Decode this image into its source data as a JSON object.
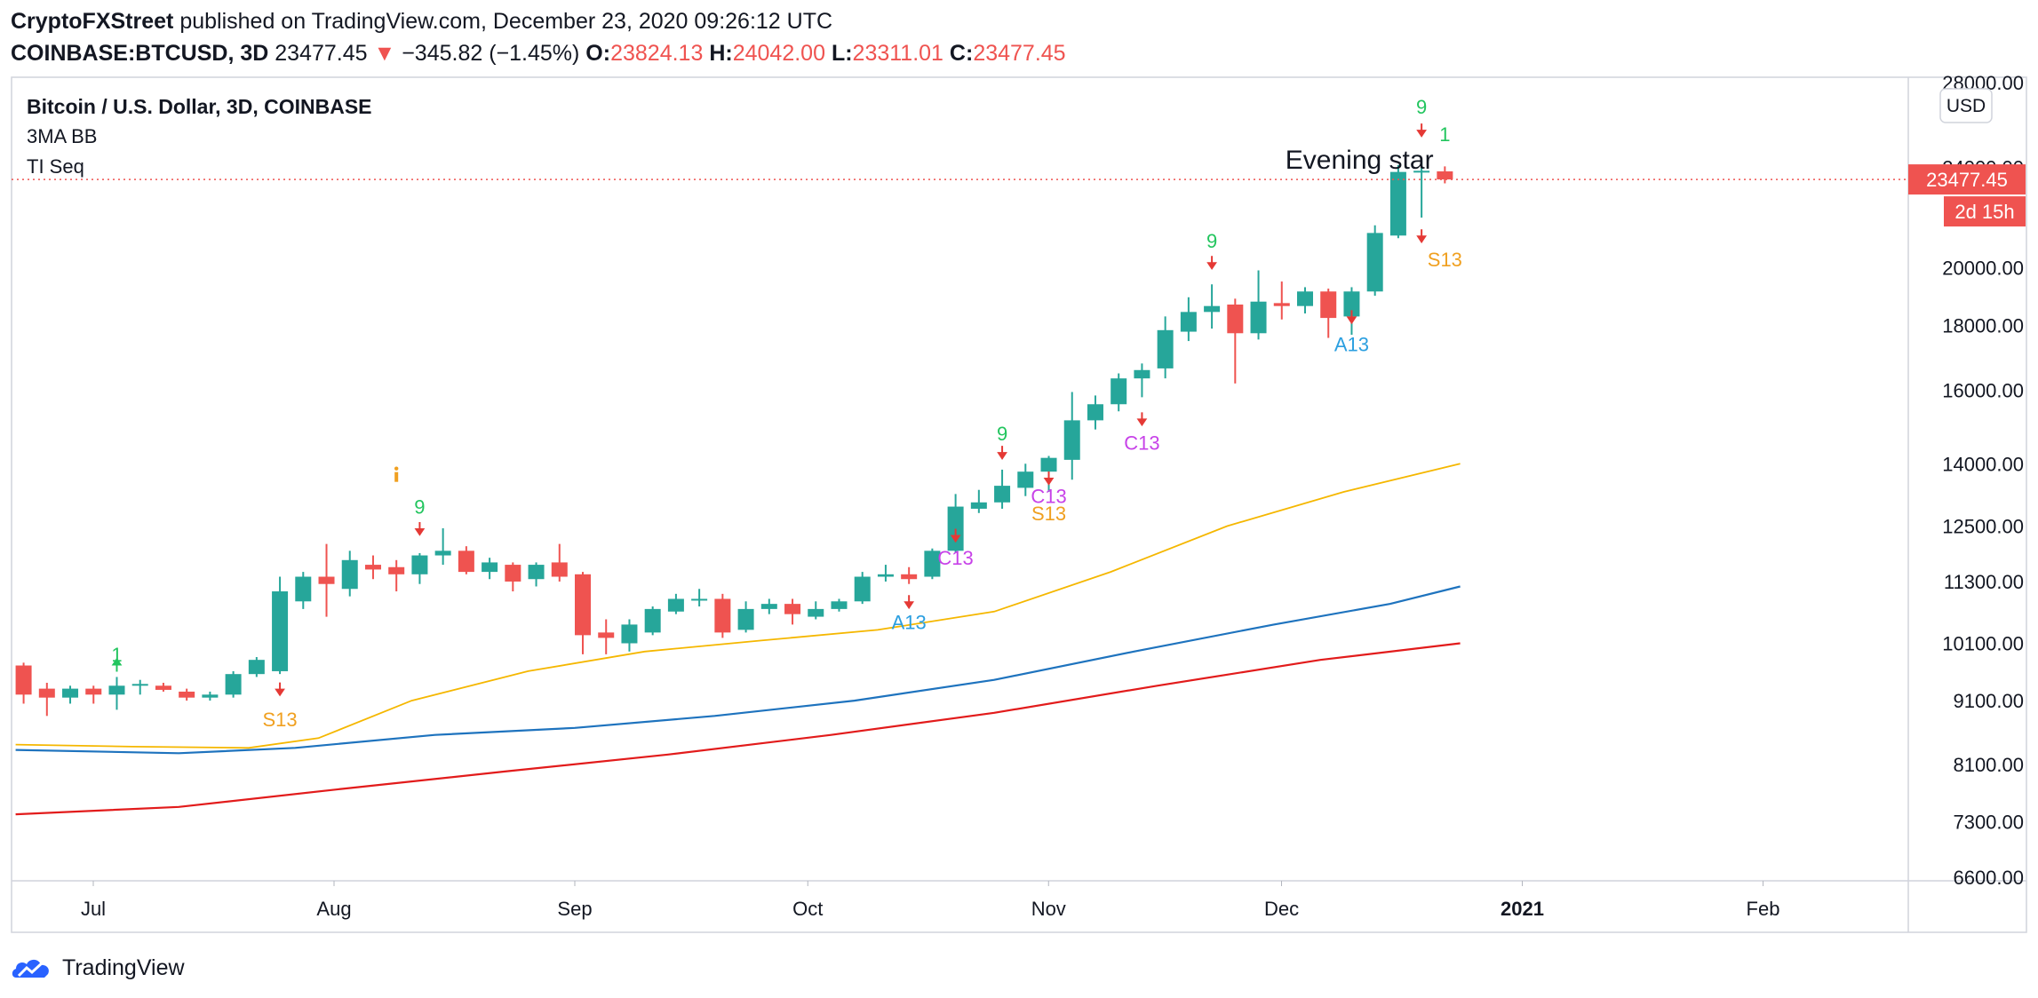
{
  "header": {
    "author": "CryptoFXStreet",
    "published_text": "published on TradingView.com, December 23, 2020 09:26:12 UTC",
    "symbol": "COINBASE:BTCUSD, 3D",
    "last_price": "23477.45",
    "change_arrow": "▼",
    "change": "−345.82 (−1.45%)",
    "o_label": "O:",
    "o_value": "23824.13",
    "h_label": "H:",
    "h_value": "24042.00",
    "l_label": "L:",
    "l_value": "23311.01",
    "c_label": "C:",
    "c_value": "23477.45"
  },
  "legend": {
    "title": "Bitcoin / U.S. Dollar, 3D, COINBASE",
    "indicator1": "3MA BB",
    "indicator2": "TI Seq"
  },
  "axis": {
    "currency_badge": "USD",
    "price_badge": "23477.45",
    "countdown_badge": "2d 15h"
  },
  "footer": {
    "brand": "TradingView"
  },
  "colors": {
    "up": "#26a69a",
    "down": "#ef5350",
    "ma_yellow": "#f5b700",
    "ma_blue": "#1e73be",
    "ma_red": "#e21b1b",
    "seq_green": "#22c55e",
    "seq_orange": "#f0a020",
    "seq_purple": "#c742e8",
    "seq_blue": "#2b9fe0",
    "seq_arrow_red": "#e53935"
  },
  "chart_data": {
    "type": "candlestick",
    "scale": "log",
    "ylim": [
      6600,
      28000
    ],
    "y_ticks": [
      "6600.00",
      "7300.00",
      "8100.00",
      "9100.00",
      "10100.00",
      "11300.00",
      "12500.00",
      "14000.00",
      "16000.00",
      "18000.00",
      "20000.00",
      "24000.00",
      "28000.00"
    ],
    "x_ticks": [
      {
        "label": "Jul",
        "date": "2020-07-01"
      },
      {
        "label": "Aug",
        "date": "2020-08-01"
      },
      {
        "label": "Sep",
        "date": "2020-09-01"
      },
      {
        "label": "Oct",
        "date": "2020-10-01"
      },
      {
        "label": "Nov",
        "date": "2020-11-01"
      },
      {
        "label": "Dec",
        "date": "2020-12-01"
      },
      {
        "label": "2021",
        "date": "2021-01-01"
      },
      {
        "label": "Feb",
        "date": "2021-02-01"
      }
    ],
    "candles": [
      {
        "d": "2020-06-21",
        "o": 9700,
        "h": 9750,
        "l": 9050,
        "c": 9200
      },
      {
        "d": "2020-06-24",
        "o": 9300,
        "h": 9400,
        "l": 8850,
        "c": 9150
      },
      {
        "d": "2020-06-27",
        "o": 9150,
        "h": 9350,
        "l": 9050,
        "c": 9300
      },
      {
        "d": "2020-06-30",
        "o": 9300,
        "h": 9350,
        "l": 9050,
        "c": 9200
      },
      {
        "d": "2020-07-03",
        "o": 9200,
        "h": 9500,
        "l": 8950,
        "c": 9350
      },
      {
        "d": "2020-07-06",
        "o": 9350,
        "h": 9450,
        "l": 9200,
        "c": 9380
      },
      {
        "d": "2020-07-09",
        "o": 9350,
        "h": 9400,
        "l": 9250,
        "c": 9280
      },
      {
        "d": "2020-07-12",
        "o": 9250,
        "h": 9300,
        "l": 9100,
        "c": 9150
      },
      {
        "d": "2020-07-15",
        "o": 9150,
        "h": 9250,
        "l": 9100,
        "c": 9200
      },
      {
        "d": "2020-07-18",
        "o": 9200,
        "h": 9600,
        "l": 9150,
        "c": 9550
      },
      {
        "d": "2020-07-21",
        "o": 9550,
        "h": 9850,
        "l": 9500,
        "c": 9800
      },
      {
        "d": "2020-07-24",
        "o": 9600,
        "h": 11400,
        "l": 9550,
        "c": 11100
      },
      {
        "d": "2020-07-27",
        "o": 10900,
        "h": 11500,
        "l": 10750,
        "c": 11400
      },
      {
        "d": "2020-07-30",
        "o": 11400,
        "h": 12100,
        "l": 10600,
        "c": 11250
      },
      {
        "d": "2020-08-02",
        "o": 11150,
        "h": 11950,
        "l": 11000,
        "c": 11750
      },
      {
        "d": "2020-08-05",
        "o": 11650,
        "h": 11850,
        "l": 11350,
        "c": 11550
      },
      {
        "d": "2020-08-08",
        "o": 11600,
        "h": 11750,
        "l": 11100,
        "c": 11450
      },
      {
        "d": "2020-08-11",
        "o": 11450,
        "h": 11900,
        "l": 11250,
        "c": 11850
      },
      {
        "d": "2020-08-14",
        "o": 11850,
        "h": 12450,
        "l": 11650,
        "c": 11950
      },
      {
        "d": "2020-08-17",
        "o": 11950,
        "h": 12050,
        "l": 11450,
        "c": 11500
      },
      {
        "d": "2020-08-20",
        "o": 11500,
        "h": 11800,
        "l": 11350,
        "c": 11700
      },
      {
        "d": "2020-08-23",
        "o": 11650,
        "h": 11700,
        "l": 11100,
        "c": 11300
      },
      {
        "d": "2020-08-26",
        "o": 11350,
        "h": 11700,
        "l": 11200,
        "c": 11650
      },
      {
        "d": "2020-08-29",
        "o": 11700,
        "h": 12100,
        "l": 11300,
        "c": 11400
      },
      {
        "d": "2020-09-01",
        "o": 11450,
        "h": 11500,
        "l": 9900,
        "c": 10250
      },
      {
        "d": "2020-09-04",
        "o": 10300,
        "h": 10550,
        "l": 9900,
        "c": 10200
      },
      {
        "d": "2020-09-07",
        "o": 10100,
        "h": 10550,
        "l": 9950,
        "c": 10450
      },
      {
        "d": "2020-09-10",
        "o": 10300,
        "h": 10800,
        "l": 10250,
        "c": 10750
      },
      {
        "d": "2020-09-13",
        "o": 10700,
        "h": 11050,
        "l": 10650,
        "c": 10950
      },
      {
        "d": "2020-09-16",
        "o": 10950,
        "h": 11150,
        "l": 10800,
        "c": 10950
      },
      {
        "d": "2020-09-19",
        "o": 10950,
        "h": 11050,
        "l": 10200,
        "c": 10300
      },
      {
        "d": "2020-09-22",
        "o": 10350,
        "h": 10900,
        "l": 10300,
        "c": 10750
      },
      {
        "d": "2020-09-25",
        "o": 10750,
        "h": 10950,
        "l": 10650,
        "c": 10850
      },
      {
        "d": "2020-09-28",
        "o": 10850,
        "h": 10950,
        "l": 10450,
        "c": 10650
      },
      {
        "d": "2020-10-01",
        "o": 10600,
        "h": 10900,
        "l": 10550,
        "c": 10750
      },
      {
        "d": "2020-10-04",
        "o": 10750,
        "h": 10950,
        "l": 10700,
        "c": 10900
      },
      {
        "d": "2020-10-07",
        "o": 10900,
        "h": 11500,
        "l": 10850,
        "c": 11400
      },
      {
        "d": "2020-10-10",
        "o": 11400,
        "h": 11650,
        "l": 11300,
        "c": 11450
      },
      {
        "d": "2020-10-13",
        "o": 11450,
        "h": 11600,
        "l": 11250,
        "c": 11350
      },
      {
        "d": "2020-10-16",
        "o": 11400,
        "h": 12000,
        "l": 11350,
        "c": 11950
      },
      {
        "d": "2020-10-19",
        "o": 11950,
        "h": 13250,
        "l": 11900,
        "c": 12950
      },
      {
        "d": "2020-10-22",
        "o": 12900,
        "h": 13350,
        "l": 12800,
        "c": 13050
      },
      {
        "d": "2020-10-25",
        "o": 13050,
        "h": 13850,
        "l": 12900,
        "c": 13450
      },
      {
        "d": "2020-10-28",
        "o": 13400,
        "h": 14000,
        "l": 13200,
        "c": 13800
      },
      {
        "d": "2020-10-31",
        "o": 13800,
        "h": 14200,
        "l": 13300,
        "c": 14150
      },
      {
        "d": "2020-11-03",
        "o": 14100,
        "h": 15950,
        "l": 13600,
        "c": 15150
      },
      {
        "d": "2020-11-06",
        "o": 15150,
        "h": 15850,
        "l": 14900,
        "c": 15600
      },
      {
        "d": "2020-11-09",
        "o": 15600,
        "h": 16500,
        "l": 15400,
        "c": 16350
      },
      {
        "d": "2020-11-12",
        "o": 16350,
        "h": 16800,
        "l": 15800,
        "c": 16600
      },
      {
        "d": "2020-11-15",
        "o": 16650,
        "h": 18300,
        "l": 16350,
        "c": 17850
      },
      {
        "d": "2020-11-18",
        "o": 17800,
        "h": 18950,
        "l": 17500,
        "c": 18450
      },
      {
        "d": "2020-11-21",
        "o": 18450,
        "h": 19400,
        "l": 17900,
        "c": 18650
      },
      {
        "d": "2020-11-24",
        "o": 18700,
        "h": 18900,
        "l": 16200,
        "c": 17750
      },
      {
        "d": "2020-11-27",
        "o": 17750,
        "h": 19900,
        "l": 17550,
        "c": 18800
      },
      {
        "d": "2020-11-30",
        "o": 18750,
        "h": 19500,
        "l": 18200,
        "c": 18650
      },
      {
        "d": "2020-12-03",
        "o": 18650,
        "h": 19300,
        "l": 18400,
        "c": 19150
      },
      {
        "d": "2020-12-06",
        "o": 19150,
        "h": 19250,
        "l": 17600,
        "c": 18250
      },
      {
        "d": "2020-12-09",
        "o": 18300,
        "h": 19300,
        "l": 17700,
        "c": 19150
      },
      {
        "d": "2020-12-12",
        "o": 19150,
        "h": 21600,
        "l": 19000,
        "c": 21300
      },
      {
        "d": "2020-12-15",
        "o": 21200,
        "h": 24100,
        "l": 21100,
        "c": 23800
      },
      {
        "d": "2020-12-18",
        "o": 23800,
        "h": 24300,
        "l": 21900,
        "c": 23850
      },
      {
        "d": "2020-12-21",
        "o": 23824.13,
        "h": 24042.0,
        "l": 23311.01,
        "c": 23477.45
      }
    ],
    "series": [
      {
        "color": "ma_yellow",
        "points": [
          [
            "2020-06-21",
            8400
          ],
          [
            "2020-07-06",
            8370
          ],
          [
            "2020-07-21",
            8350
          ],
          [
            "2020-07-30",
            8500
          ],
          [
            "2020-08-11",
            9100
          ],
          [
            "2020-08-26",
            9600
          ],
          [
            "2020-09-10",
            9950
          ],
          [
            "2020-09-25",
            10150
          ],
          [
            "2020-10-10",
            10350
          ],
          [
            "2020-10-25",
            10700
          ],
          [
            "2020-11-09",
            11500
          ],
          [
            "2020-11-24",
            12500
          ],
          [
            "2020-12-09",
            13300
          ],
          [
            "2020-12-24",
            14000
          ]
        ]
      },
      {
        "color": "ma_blue",
        "points": [
          [
            "2020-06-21",
            8320
          ],
          [
            "2020-07-12",
            8270
          ],
          [
            "2020-07-27",
            8350
          ],
          [
            "2020-08-14",
            8550
          ],
          [
            "2020-09-01",
            8660
          ],
          [
            "2020-09-19",
            8850
          ],
          [
            "2020-10-07",
            9100
          ],
          [
            "2020-10-25",
            9450
          ],
          [
            "2020-11-12",
            9950
          ],
          [
            "2020-11-30",
            10450
          ],
          [
            "2020-12-15",
            10850
          ],
          [
            "2020-12-24",
            11200
          ]
        ]
      },
      {
        "color": "ma_red",
        "points": [
          [
            "2020-06-21",
            7400
          ],
          [
            "2020-07-12",
            7500
          ],
          [
            "2020-08-02",
            7750
          ],
          [
            "2020-08-23",
            8000
          ],
          [
            "2020-09-13",
            8250
          ],
          [
            "2020-10-04",
            8550
          ],
          [
            "2020-10-25",
            8900
          ],
          [
            "2020-11-15",
            9350
          ],
          [
            "2020-12-06",
            9800
          ],
          [
            "2020-12-24",
            10100
          ]
        ]
      }
    ],
    "annotations": [
      {
        "text": "Evening star",
        "d": "2020-12-10",
        "y": 24300,
        "color": "#131722"
      }
    ],
    "seq_labels": [
      {
        "text": "1",
        "d": "2020-07-03",
        "y": 9900,
        "color": "seq_green"
      },
      {
        "text": "S13",
        "d": "2020-07-24",
        "y": 8800,
        "color": "seq_orange"
      },
      {
        "text": "9",
        "d": "2020-08-11",
        "y": 12950,
        "color": "seq_green"
      },
      {
        "text": "A13",
        "d": "2020-10-13",
        "y": 10500,
        "color": "seq_blue"
      },
      {
        "text": "C13",
        "d": "2020-10-19",
        "y": 11800,
        "color": "seq_purple"
      },
      {
        "text": "9",
        "d": "2020-10-25",
        "y": 14800,
        "color": "seq_green"
      },
      {
        "text": "C13",
        "d": "2020-10-31",
        "y": 13200,
        "color": "seq_purple"
      },
      {
        "text": "S13",
        "d": "2020-10-31",
        "y": 12800,
        "color": "seq_orange"
      },
      {
        "text": "C13",
        "d": "2020-11-12",
        "y": 14550,
        "color": "seq_purple"
      },
      {
        "text": "9",
        "d": "2020-11-21",
        "y": 21000,
        "color": "seq_green"
      },
      {
        "text": "A13",
        "d": "2020-12-09",
        "y": 17400,
        "color": "seq_blue"
      },
      {
        "text": "9",
        "d": "2020-12-18",
        "y": 26800,
        "color": "seq_green"
      },
      {
        "text": "1",
        "d": "2020-12-21",
        "y": 25500,
        "color": "seq_green"
      },
      {
        "text": "S13",
        "d": "2020-12-21",
        "y": 20300,
        "color": "seq_orange"
      }
    ],
    "seq_arrows": [
      {
        "d": "2020-07-03",
        "y": 9700,
        "dir": "up",
        "color": "seq_green"
      },
      {
        "d": "2020-07-24",
        "y": 9300,
        "dir": "down",
        "color": "seq_arrow_red"
      },
      {
        "d": "2020-08-08",
        "y": 13700,
        "dir": "info",
        "color": "seq_orange"
      },
      {
        "d": "2020-08-11",
        "y": 12450,
        "dir": "down",
        "color": "seq_arrow_red"
      },
      {
        "d": "2020-10-13",
        "y": 10900,
        "dir": "down",
        "color": "seq_arrow_red"
      },
      {
        "d": "2020-10-19",
        "y": 12300,
        "dir": "down",
        "color": "seq_arrow_red"
      },
      {
        "d": "2020-10-25",
        "y": 14300,
        "dir": "down",
        "color": "seq_arrow_red"
      },
      {
        "d": "2020-10-31",
        "y": 13650,
        "dir": "down",
        "color": "seq_arrow_red"
      },
      {
        "d": "2020-11-12",
        "y": 15200,
        "dir": "down",
        "color": "seq_arrow_red"
      },
      {
        "d": "2020-11-21",
        "y": 20200,
        "dir": "down",
        "color": "seq_arrow_red"
      },
      {
        "d": "2020-12-09",
        "y": 18300,
        "dir": "down",
        "color": "seq_arrow_red"
      },
      {
        "d": "2020-12-18",
        "y": 25700,
        "dir": "down",
        "color": "seq_arrow_red"
      },
      {
        "d": "2020-12-18",
        "y": 21200,
        "dir": "down",
        "color": "seq_arrow_red"
      }
    ],
    "last_price_line": 23477.45
  }
}
